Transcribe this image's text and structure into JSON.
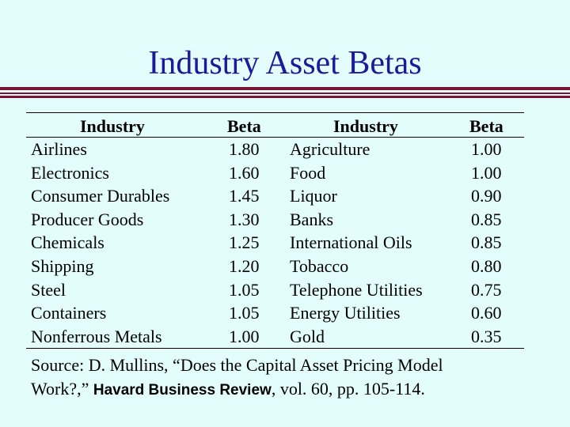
{
  "title": "Industry Asset Betas",
  "table": {
    "headers": [
      "Industry",
      "Beta",
      "Industry",
      "Beta"
    ],
    "rows": [
      [
        "Airlines",
        "1.80",
        "Agriculture",
        "1.00"
      ],
      [
        "Electronics",
        "1.60",
        "Food",
        "1.00"
      ],
      [
        "Consumer Durables",
        "1.45",
        "Liquor",
        "0.90"
      ],
      [
        "Producer Goods",
        "1.30",
        "Banks",
        "0.85"
      ],
      [
        "Chemicals",
        "1.25",
        "International Oils",
        "0.85"
      ],
      [
        "Shipping",
        "1.20",
        "Tobacco",
        "0.80"
      ],
      [
        "Steel",
        "1.05",
        "Telephone Utilities",
        "0.75"
      ],
      [
        "Containers",
        "1.05",
        "Energy Utilities",
        "0.60"
      ],
      [
        "Nonferrous Metals",
        "1.00",
        "Gold",
        "0.35"
      ]
    ]
  },
  "source": {
    "line1": "Source: D. Mullins, “Does the Capital Asset Pricing Model",
    "line2_pre": "Work?,” ",
    "journal": "Havard Business Review",
    "line2_post": ", vol. 60, pp. 105-114."
  },
  "colors": {
    "background": "#e3fdfd",
    "title": "#1a1a9a",
    "rule": "#7a1634"
  }
}
